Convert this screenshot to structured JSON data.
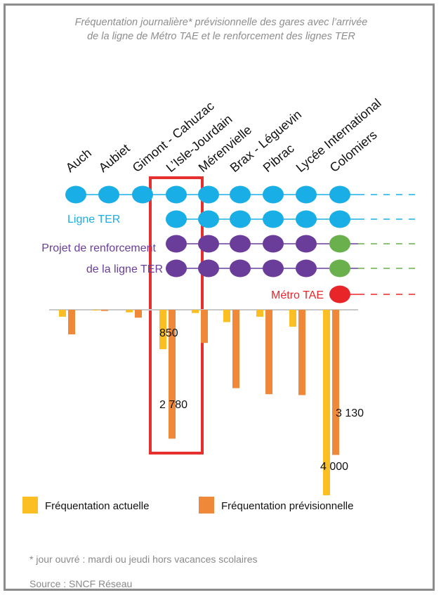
{
  "title": {
    "line1": "Fréquentation journalière* prévisionnelle des gares avec l’arrivée",
    "line2": "de la ligne de Métro TAE et le renforcement des lignes TER"
  },
  "line_labels": {
    "ter": "Ligne TER",
    "renfort_1": "Projet de renforcement",
    "renfort_2": "de la ligne TER",
    "metro": "Métro TAE"
  },
  "colors": {
    "ter": "#1aaee6",
    "renfort": "#6a3d9a",
    "colomiers_renfort": "#6ab04c",
    "metro": "#e8262a",
    "actuelle": "#fbbf24",
    "previsionnelle": "#f0883a",
    "highlight": "#e63030"
  },
  "legend": {
    "actuelle": "Fréquentation actuelle",
    "previsionnelle": "Fréquentation prévisionnelle"
  },
  "footnote": "* jour ouvré : mardi ou jeudi hors vacances scolaires",
  "source": "Source : SNCF Réseau",
  "chart_data": {
    "type": "bar",
    "categories": [
      "Auch",
      "Aubiet",
      "Gimont - Cahuzac",
      "L’Isle-Jourdain",
      "Mérenvielle",
      "Brax - Léguevin",
      "Pibrac",
      "Lycée International",
      "Colomiers"
    ],
    "orientation": "downward",
    "series": [
      {
        "name": "Fréquentation actuelle",
        "values": [
          150,
          15,
          55,
          850,
          70,
          265,
          150,
          365,
          4000
        ]
      },
      {
        "name": "Fréquentation prévisionnelle",
        "values": [
          530,
          25,
          170,
          2780,
          715,
          1690,
          1820,
          1840,
          3130
        ]
      }
    ],
    "data_labels": [
      {
        "text": "850",
        "category": "L’Isle-Jourdain"
      },
      {
        "text": "2 780",
        "category": "L’Isle-Jourdain"
      },
      {
        "text": "3 130",
        "category": "Colomiers"
      },
      {
        "text": "4 000",
        "category": "Colomiers"
      }
    ],
    "highlight_category": "L’Isle-Jourdain",
    "lines": [
      {
        "name": "Ligne TER",
        "stations": [
          0,
          1,
          2,
          3,
          4,
          5,
          6,
          7,
          8
        ],
        "color": "#1aaee6"
      },
      {
        "name": "Ligne TER",
        "stations": [
          3,
          4,
          5,
          6,
          7,
          8
        ],
        "color": "#1aaee6"
      },
      {
        "name": "Projet de renforcement de la ligne TER",
        "stations": [
          3,
          4,
          5,
          6,
          7,
          8
        ],
        "color": "#6a3d9a"
      },
      {
        "name": "Projet de renforcement de la ligne TER",
        "stations": [
          3,
          4,
          5,
          6,
          7,
          8
        ],
        "color": "#6a3d9a"
      },
      {
        "name": "Métro TAE",
        "stations": [
          8
        ],
        "color": "#e8262a"
      }
    ]
  }
}
